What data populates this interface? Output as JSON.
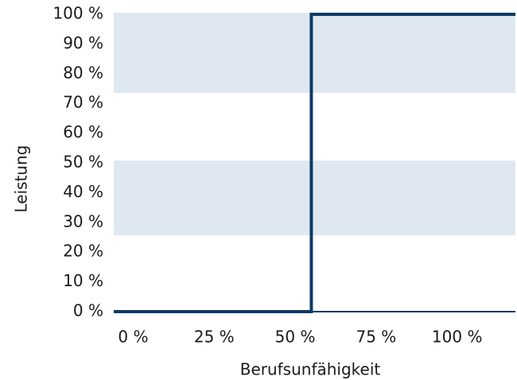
{
  "chart_data": {
    "type": "line",
    "x_label": "Berufsunfähigkeit",
    "y_label": "Leistung",
    "series": [
      {
        "name": "Leistung",
        "color": "#0b3a66",
        "x": [
          -6,
          55,
          55,
          118
        ],
        "values": [
          0,
          0,
          100,
          100
        ]
      }
    ],
    "xlim": [
      -6,
      118
    ],
    "xticks": [
      {
        "value": 0,
        "label": "0 %"
      },
      {
        "value": 25,
        "label": "25 %"
      },
      {
        "value": 50,
        "label": "50 %"
      },
      {
        "value": 75,
        "label": "75 %"
      },
      {
        "value": 100,
        "label": "100 %"
      }
    ],
    "ylim": [
      0,
      100
    ],
    "yticks": [
      {
        "value": 0,
        "label": "0 %"
      },
      {
        "value": 10,
        "label": "10 %"
      },
      {
        "value": 20,
        "label": "20 %"
      },
      {
        "value": 30,
        "label": "30 %"
      },
      {
        "value": 40,
        "label": "40 %"
      },
      {
        "value": 50,
        "label": "50 %"
      },
      {
        "value": 60,
        "label": "60 %"
      },
      {
        "value": 70,
        "label": "70 %"
      },
      {
        "value": 80,
        "label": "80 %"
      },
      {
        "value": 90,
        "label": "90 %"
      },
      {
        "value": {
          "value": 100
        },
        "label": "100 %"
      }
    ]
  }
}
